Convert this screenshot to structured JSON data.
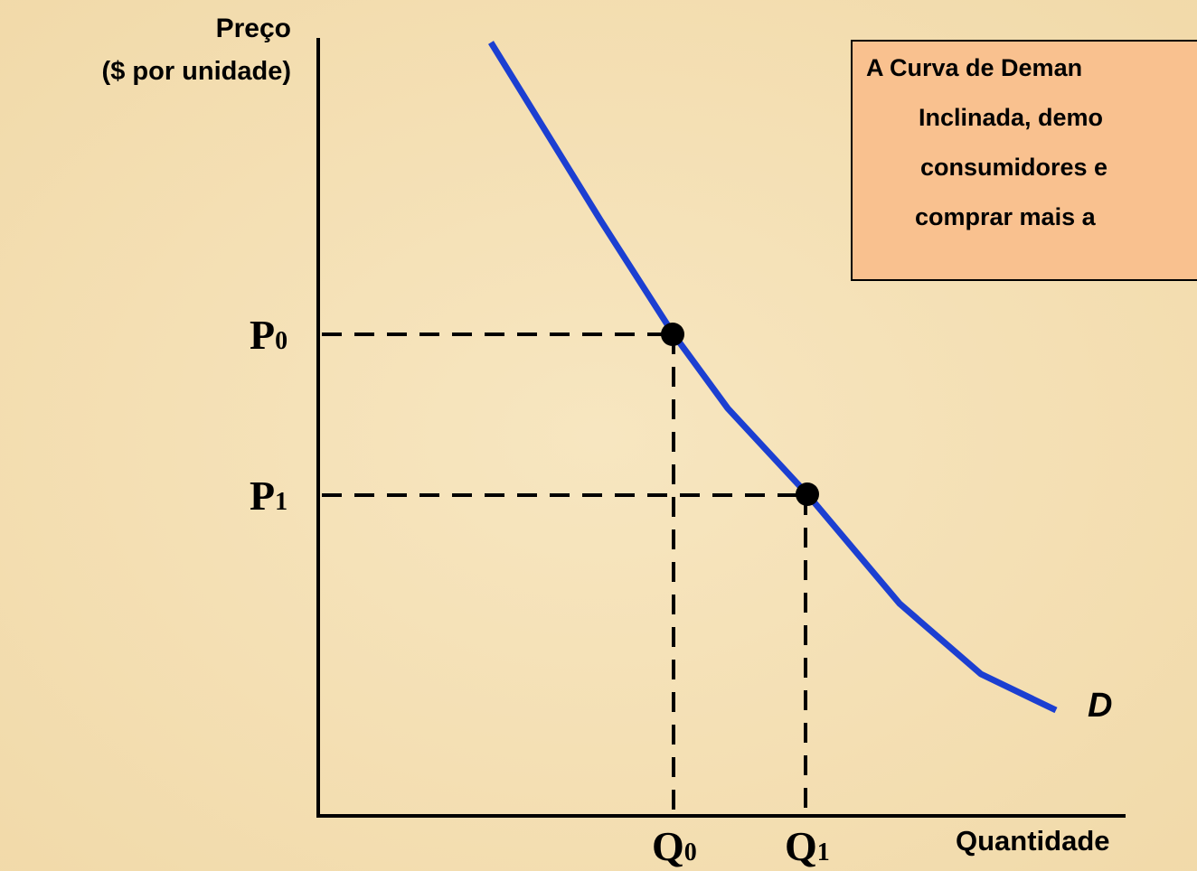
{
  "axis": {
    "y_label": [
      "Preço",
      "($ por unidade)"
    ],
    "x_label": "Quantidade"
  },
  "curve_label": "D",
  "price_labels": [
    {
      "main": "P",
      "sub": "0"
    },
    {
      "main": "P",
      "sub": "1"
    }
  ],
  "quantity_labels": [
    {
      "main": "Q",
      "sub": "0"
    },
    {
      "main": "Q",
      "sub": "1"
    }
  ],
  "note": [
    "A Curva de Deman",
    "Inclinada, demo",
    "consumidores e",
    "comprar mais a"
  ]
}
